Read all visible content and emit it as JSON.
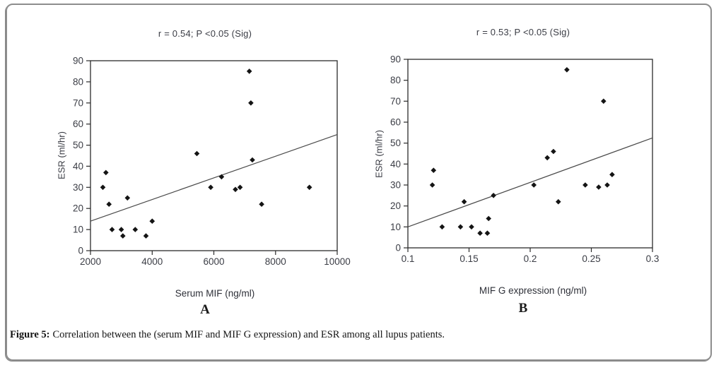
{
  "figure": {
    "caption_label": "Figure 5:",
    "caption_text": "Correlation between the (serum MIF and MIF G expression) and ESR among all lupus patients."
  },
  "colors": {
    "background": "#ffffff",
    "border": "#8d8d8d",
    "axis": "#2b2b2b",
    "tick_text": "#3b3d45",
    "marker": "#141414",
    "trendline": "#4a4a4a"
  },
  "chart_data": [
    {
      "type": "scatter",
      "panel": "A",
      "title": "r = 0.54; P <0.05 (Sig)",
      "xlabel": "Serum MIF (ng/ml)",
      "ylabel": "ESR (ml/hr)",
      "xlim": [
        2000,
        10000
      ],
      "ylim": [
        0,
        90
      ],
      "xticks": [
        2000,
        4000,
        6000,
        8000,
        10000
      ],
      "xtick_labels": [
        "2000",
        "4000",
        "6000",
        "8000",
        "10000"
      ],
      "yticks": [
        0,
        10,
        20,
        30,
        40,
        50,
        60,
        70,
        80,
        90
      ],
      "grid": false,
      "legend": null,
      "marker": "diamond",
      "points": [
        [
          2400,
          30
        ],
        [
          2500,
          37
        ],
        [
          2600,
          22
        ],
        [
          2700,
          10
        ],
        [
          3000,
          10
        ],
        [
          3050,
          7
        ],
        [
          3200,
          25
        ],
        [
          3450,
          10
        ],
        [
          3800,
          7
        ],
        [
          4000,
          14
        ],
        [
          5450,
          46
        ],
        [
          5900,
          30
        ],
        [
          6250,
          35
        ],
        [
          6700,
          29
        ],
        [
          6850,
          30
        ],
        [
          7150,
          85
        ],
        [
          7200,
          70
        ],
        [
          7250,
          43
        ],
        [
          7550,
          22
        ],
        [
          9100,
          30
        ]
      ],
      "trendline": {
        "x1": 2000,
        "y1": 14,
        "x2": 10000,
        "y2": 55
      }
    },
    {
      "type": "scatter",
      "panel": "B",
      "title": "r = 0.53; P <0.05 (Sig)",
      "xlabel": "MIF G expression (ng/ml)",
      "ylabel": "ESR (ml/hr)",
      "xlim": [
        0.1,
        0.3
      ],
      "ylim": [
        0,
        90
      ],
      "xticks": [
        0.1,
        0.15,
        0.2,
        0.25,
        0.3
      ],
      "xtick_labels": [
        "0.1",
        "0.15",
        "0.2",
        "0.25",
        "0.3"
      ],
      "yticks": [
        0,
        10,
        20,
        30,
        40,
        50,
        60,
        70,
        80,
        90
      ],
      "grid": false,
      "legend": null,
      "marker": "diamond",
      "points": [
        [
          0.12,
          30
        ],
        [
          0.121,
          37
        ],
        [
          0.128,
          10
        ],
        [
          0.143,
          10
        ],
        [
          0.146,
          22
        ],
        [
          0.152,
          10
        ],
        [
          0.159,
          7
        ],
        [
          0.165,
          7
        ],
        [
          0.166,
          14
        ],
        [
          0.17,
          25
        ],
        [
          0.203,
          30
        ],
        [
          0.214,
          43
        ],
        [
          0.219,
          46
        ],
        [
          0.223,
          22
        ],
        [
          0.23,
          85
        ],
        [
          0.245,
          30
        ],
        [
          0.256,
          29
        ],
        [
          0.26,
          70
        ],
        [
          0.263,
          30
        ],
        [
          0.267,
          35
        ]
      ],
      "trendline": {
        "x1": 0.1,
        "y1": 10,
        "x2": 0.3,
        "y2": 52.5
      }
    }
  ]
}
